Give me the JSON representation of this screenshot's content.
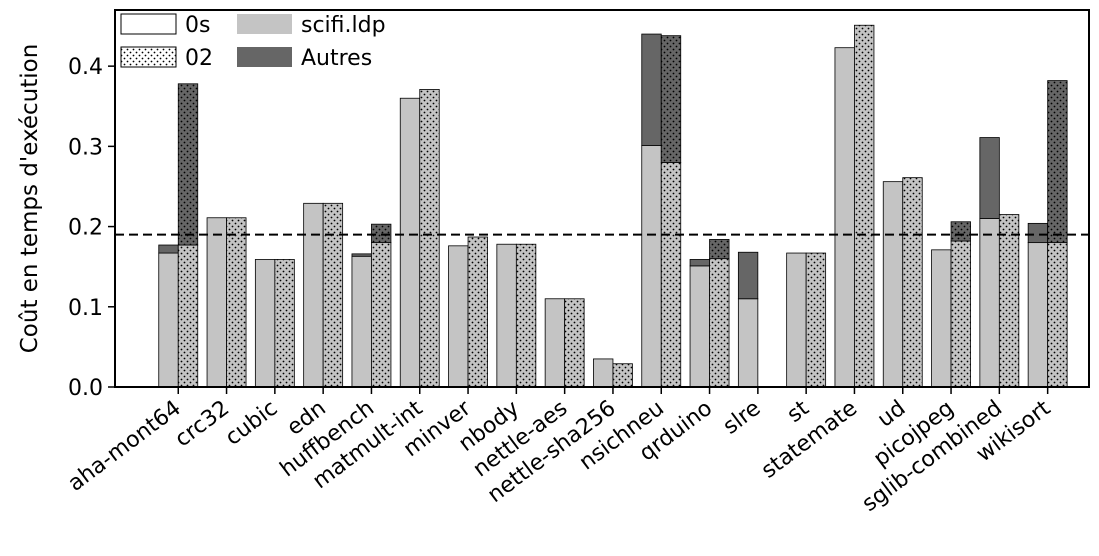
{
  "chart_data": {
    "type": "bar",
    "stacked": true,
    "grouped": true,
    "ylabel": "Coût en temps d'exécution",
    "xlabel": "",
    "ylim": [
      0,
      0.47
    ],
    "yticks": [
      0.0,
      0.1,
      0.2,
      0.3,
      0.4
    ],
    "ytick_labels": [
      "0.0",
      "0.1",
      "0.2",
      "0.3",
      "0.4"
    ],
    "reference_line": 0.19,
    "legend": {
      "placement": "top-left",
      "groups": [
        {
          "label": "0s",
          "pattern": "plain"
        },
        {
          "label": "02",
          "pattern": "dotted"
        }
      ],
      "components": [
        {
          "label": "scifi.ldp",
          "color": "#c4c4c4"
        },
        {
          "label": "Autres",
          "color": "#666666"
        }
      ]
    },
    "categories": [
      "aha-mont64",
      "crc32",
      "cubic",
      "edn",
      "huffbench",
      "matmult-int",
      "minver",
      "nbody",
      "nettle-aes",
      "nettle-sha256",
      "nsichneu",
      "qrduino",
      "slre",
      "st",
      "statemate",
      "ud",
      "picojpeg",
      "sglib-combined",
      "wikisort"
    ],
    "series": [
      {
        "name": "0s",
        "pattern": "plain",
        "scifi_ldp": [
          0.167,
          0.211,
          0.159,
          0.229,
          0.163,
          0.36,
          0.176,
          0.178,
          0.11,
          0.035,
          0.301,
          0.151,
          0.11,
          0.167,
          0.423,
          0.256,
          0.171,
          0.21,
          0.18
        ],
        "autres": [
          0.01,
          0.0,
          0.0,
          0.0,
          0.003,
          0.0,
          0.0,
          0.0,
          0.0,
          0.0,
          0.139,
          0.008,
          0.058,
          0.0,
          0.0,
          0.0,
          0.0,
          0.101,
          0.024
        ]
      },
      {
        "name": "02",
        "pattern": "dotted",
        "scifi_ldp": [
          0.177,
          0.211,
          0.159,
          0.229,
          0.18,
          0.371,
          0.187,
          0.178,
          0.11,
          0.029,
          0.28,
          0.16,
          null,
          0.167,
          0.451,
          0.261,
          0.182,
          0.215,
          0.18
        ],
        "autres": [
          0.201,
          0.0,
          0.0,
          0.0,
          0.023,
          0.0,
          0.0,
          0.0,
          0.0,
          0.0,
          0.158,
          0.024,
          null,
          0.0,
          0.0,
          0.0,
          0.024,
          0.0,
          0.202
        ]
      }
    ]
  }
}
